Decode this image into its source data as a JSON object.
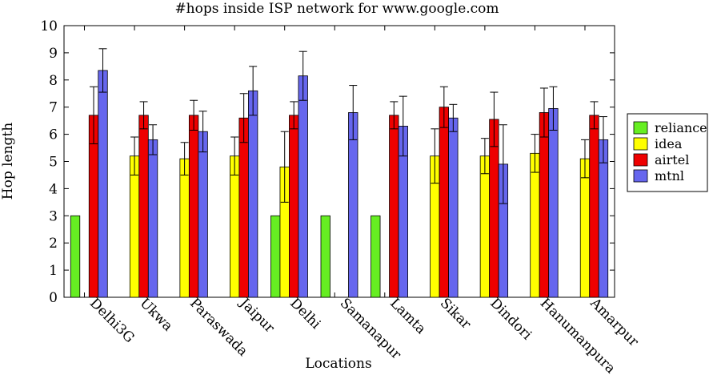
{
  "chart_data": {
    "type": "bar",
    "title": "#hops inside ISP network for www.google.com",
    "xlabel": "Locations",
    "ylabel": "Hop length",
    "ylim": [
      0,
      10
    ],
    "yticks": [
      "0",
      "1",
      "2",
      "3",
      "4",
      "5",
      "6",
      "7",
      "8",
      "9",
      "10"
    ],
    "grid": false,
    "legend_position": "right",
    "categories": [
      "Delhi3G",
      "Ukwa",
      "Paraswada",
      "Jaipur",
      "Delhi",
      "Samanapur",
      "Lamta",
      "Sikar",
      "Dindori",
      "Hanumanpura",
      "Amarpur"
    ],
    "series": [
      {
        "name": "reliance",
        "color": "#66ee22",
        "values": [
          3,
          null,
          null,
          null,
          3,
          3,
          3,
          null,
          null,
          null,
          null
        ],
        "errors": [
          0,
          null,
          null,
          null,
          0,
          0,
          0,
          null,
          null,
          null,
          null
        ]
      },
      {
        "name": "idea",
        "color": "#ffff00",
        "values": [
          null,
          5.2,
          5.1,
          5.2,
          4.8,
          null,
          null,
          5.2,
          5.2,
          5.3,
          5.1
        ],
        "errors": [
          null,
          0.7,
          0.6,
          0.7,
          1.3,
          null,
          null,
          1.0,
          0.65,
          0.7,
          0.7
        ]
      },
      {
        "name": "airtel",
        "color": "#ee0000",
        "values": [
          6.7,
          6.7,
          6.7,
          6.6,
          6.7,
          null,
          6.7,
          7.0,
          6.55,
          6.8,
          6.7
        ],
        "errors": [
          1.05,
          0.5,
          0.55,
          0.9,
          0.5,
          null,
          0.5,
          0.75,
          1.0,
          0.9,
          0.5
        ]
      },
      {
        "name": "mtnl",
        "color": "#6666ee",
        "values": [
          8.35,
          5.8,
          6.1,
          7.6,
          8.15,
          6.8,
          6.3,
          6.6,
          4.9,
          6.95,
          5.8
        ],
        "errors": [
          0.8,
          0.55,
          0.75,
          0.9,
          0.9,
          1.0,
          1.1,
          0.5,
          1.45,
          0.8,
          0.85
        ]
      }
    ]
  }
}
